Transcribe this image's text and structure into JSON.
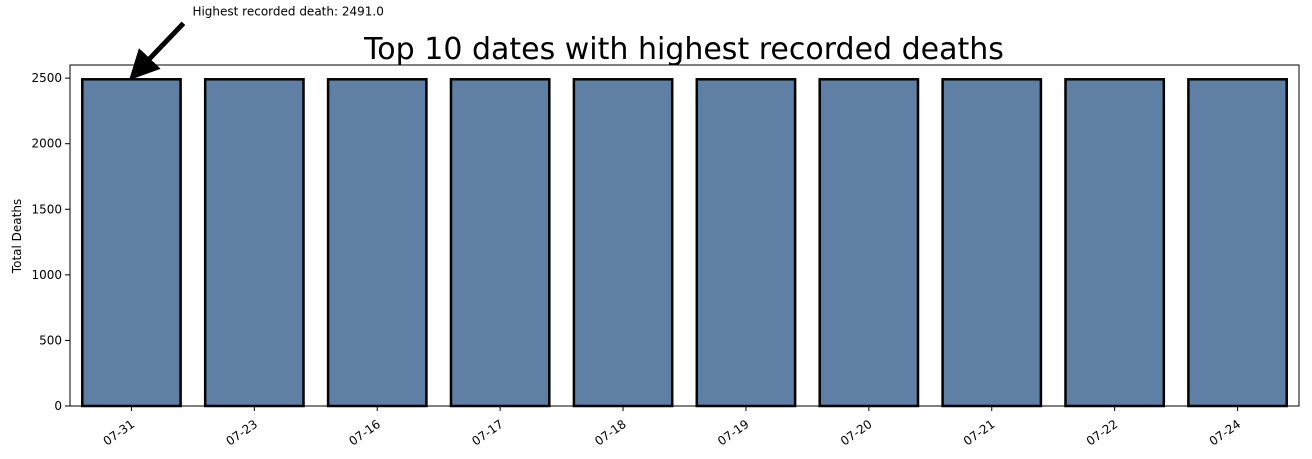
{
  "chart_data": {
    "type": "bar",
    "title": "Top 10 dates with highest recorded deaths",
    "xlabel": "",
    "ylabel": "Total Deaths",
    "categories": [
      "07-31",
      "07-23",
      "07-16",
      "07-17",
      "07-18",
      "07-19",
      "07-20",
      "07-21",
      "07-22",
      "07-24"
    ],
    "values": [
      2491,
      2491,
      2491,
      2491,
      2491,
      2491,
      2491,
      2491,
      2491,
      2491
    ],
    "ylim": [
      0,
      2600
    ],
    "yticks": [
      0,
      500,
      1000,
      1500,
      2000,
      2500
    ],
    "grid": false,
    "bar_color": "#5f80a4",
    "edge_color": "#000000",
    "annotation": {
      "text": "Highest recorded death: 2491.0",
      "category": "07-31",
      "value": 2491
    }
  }
}
